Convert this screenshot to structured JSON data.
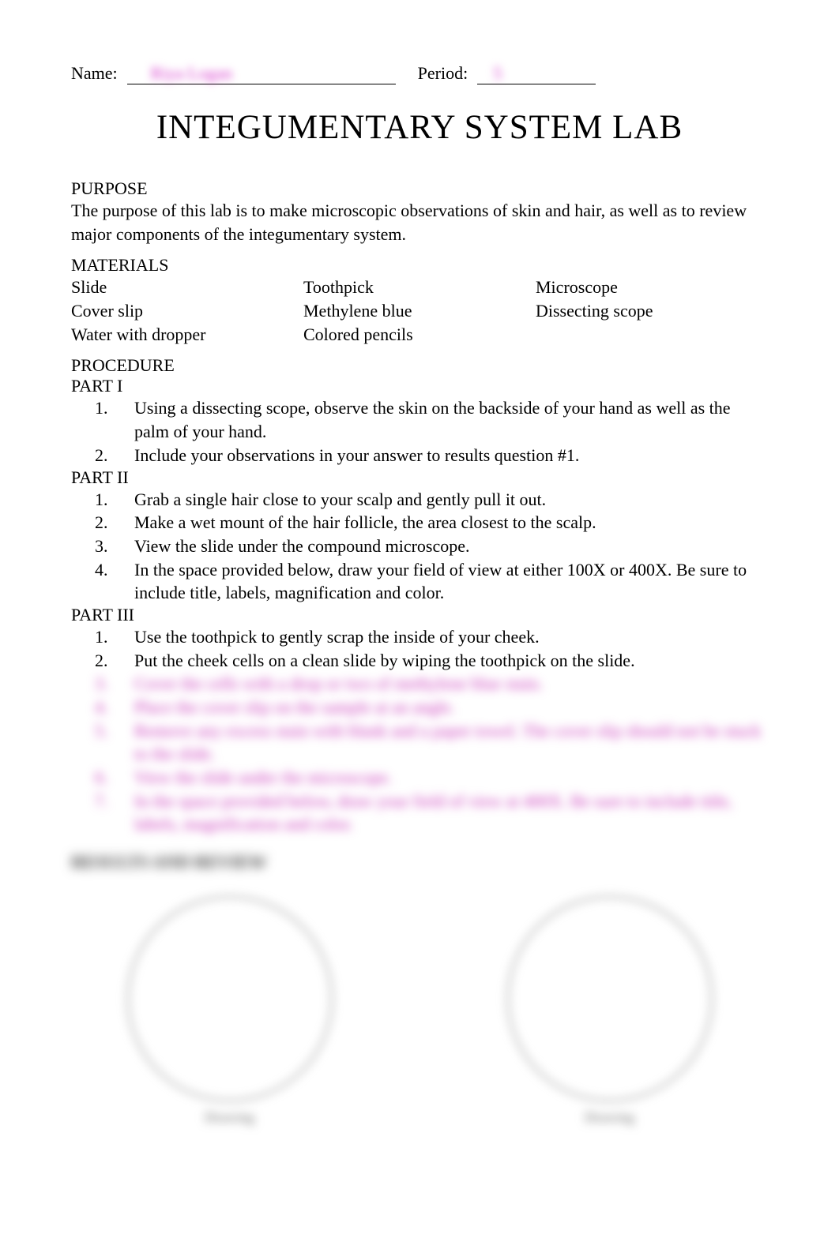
{
  "header": {
    "name_label": "Name:",
    "name_value": "Riya  Logan",
    "period_label": "Period:",
    "period_value": "5"
  },
  "title": "INTEGUMENTARY SYSTEM LAB",
  "purpose": {
    "heading": "PURPOSE",
    "text": "The purpose of this lab is to make microscopic observations of skin and hair, as well as to review major components of the integumentary system."
  },
  "materials": {
    "heading": "MATERIALS",
    "col1": [
      "Slide",
      "Cover slip",
      "Water with dropper"
    ],
    "col2": [
      "Toothpick",
      "Methylene blue",
      "Colored pencils"
    ],
    "col3": [
      "Microscope",
      "Dissecting scope"
    ]
  },
  "procedure": {
    "heading": "PROCEDURE",
    "parts": [
      {
        "heading": "PART I",
        "steps": [
          {
            "num": "1.",
            "text": "Using a dissecting scope, observe the skin on the backside of your hand as well as the palm of your hand."
          },
          {
            "num": "2.",
            "text": "Include your observations in your answer to results question #1."
          }
        ]
      },
      {
        "heading": "PART II",
        "steps": [
          {
            "num": "1.",
            "text": "Grab a single hair close to your scalp and gently pull it out."
          },
          {
            "num": "2.",
            "text": "Make a wet mount of the hair follicle, the area closest to the scalp."
          },
          {
            "num": "3.",
            "text": "View the slide under the compound microscope."
          },
          {
            "num": "4.",
            "text": "In the space provided below, draw your field of view at either 100X or 400X. Be sure to include title, labels, magnification and color."
          }
        ]
      },
      {
        "heading": "PART III",
        "steps": [
          {
            "num": "1.",
            "text": "Use the toothpick to gently scrap the inside of your cheek."
          },
          {
            "num": "2.",
            "text": "Put the cheek cells on a clean slide by wiping the toothpick on the slide."
          }
        ],
        "blurred_steps": [
          {
            "num": "3.",
            "text": "Cover the cells with a drop or two of methylene blue stain."
          },
          {
            "num": "4.",
            "text": "Place the cover slip on the sample at an angle."
          },
          {
            "num": "5.",
            "text": "Remove any excess stain with blank and a paper towel. The cover slip should not be stuck to the slide."
          },
          {
            "num": "6.",
            "text": "View the slide under the microscope."
          },
          {
            "num": "7.",
            "text": "In the space provided below, draw your field of view at 400X. Be sure to include title, labels, magnification and color."
          }
        ]
      }
    ]
  },
  "results": {
    "heading": "RESULTS AND REVIEW"
  },
  "circles": [
    {
      "caption": "Drawing"
    },
    {
      "caption": "Drawing"
    }
  ],
  "colors": {
    "text": "#000000",
    "background": "#ffffff",
    "blurred_pink": "#d633cc",
    "circle_border": "#888888"
  },
  "fonts": {
    "body_size_pt": 16,
    "title_size_pt": 32,
    "family": "Times New Roman"
  }
}
